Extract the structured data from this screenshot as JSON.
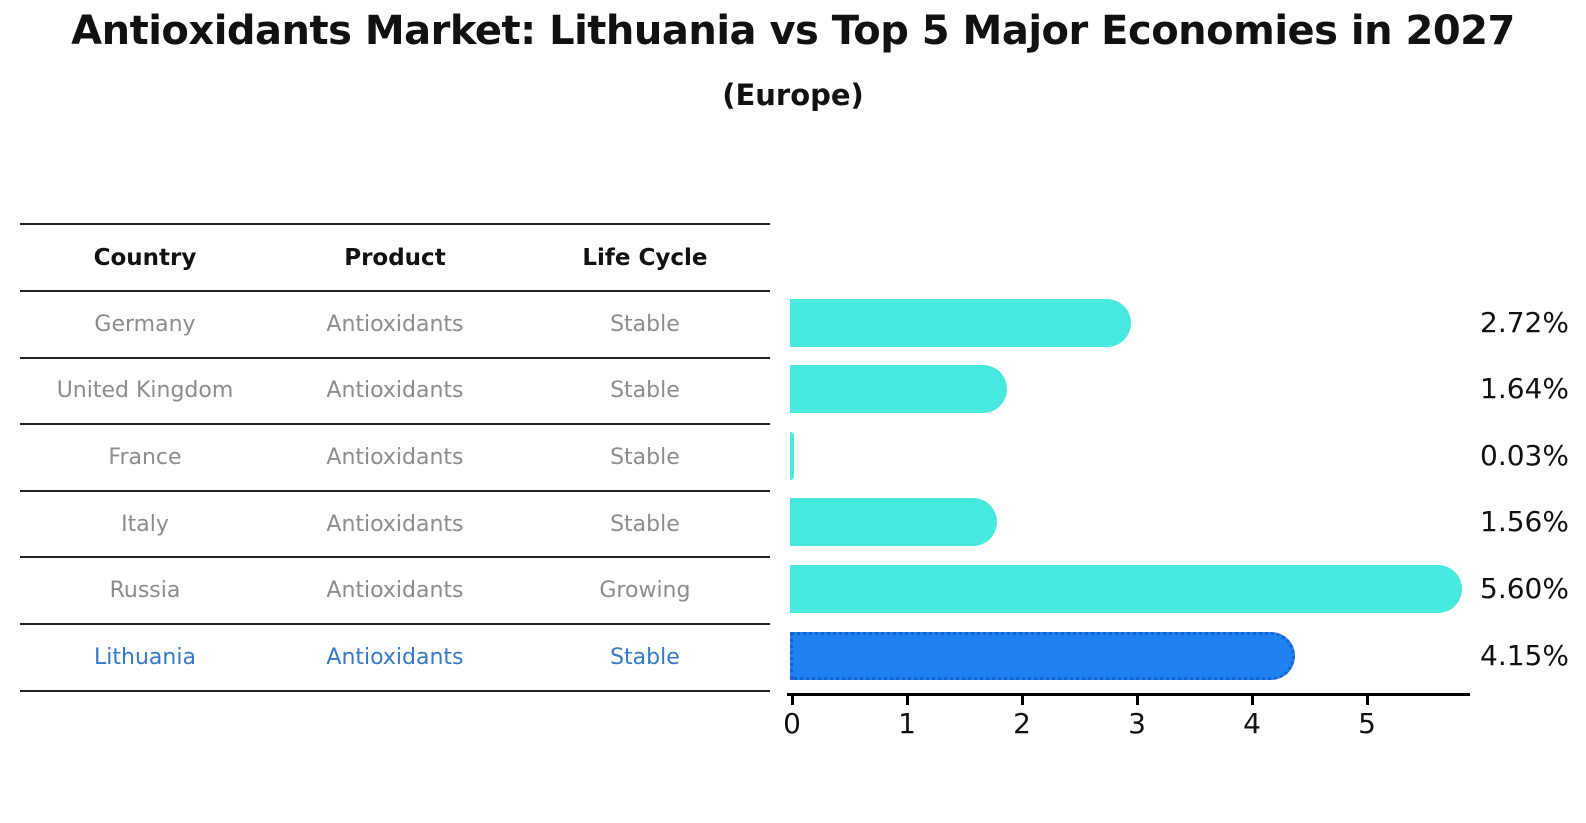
{
  "title": "Antioxidants Market: Lithuania vs Top 5 Major Economies in 2027",
  "subtitle": "(Europe)",
  "colors": {
    "bar_default": "#47e9df",
    "bar_highlight": "#1e82f0",
    "bar_highlight_border": "#1565d0",
    "row_text": "#8d8d8d",
    "highlight_text": "#3579c8",
    "axis": "#000000"
  },
  "table": {
    "headers": [
      "Country",
      "Product",
      "Life Cycle"
    ],
    "rows": [
      {
        "country": "Germany",
        "product": "Antioxidants",
        "life_cycle": "Stable",
        "highlight": false
      },
      {
        "country": "United Kingdom",
        "product": "Antioxidants",
        "life_cycle": "Stable",
        "highlight": false
      },
      {
        "country": "France",
        "product": "Antioxidants",
        "life_cycle": "Stable",
        "highlight": false
      },
      {
        "country": "Italy",
        "product": "Antioxidants",
        "life_cycle": "Stable",
        "highlight": false
      },
      {
        "country": "Russia",
        "product": "Antioxidants",
        "life_cycle": "Growing",
        "highlight": false
      },
      {
        "country": "Lithuania",
        "product": "Antioxidants",
        "life_cycle": "Stable",
        "highlight": true
      }
    ]
  },
  "chart_data": {
    "type": "bar",
    "orientation": "horizontal",
    "title": "Antioxidants Market: Lithuania vs Top 5 Major Economies in 2027",
    "subtitle": "(Europe)",
    "categories": [
      "Germany",
      "United Kingdom",
      "France",
      "Italy",
      "Russia",
      "Lithuania"
    ],
    "values": [
      2.72,
      1.64,
      0.03,
      1.56,
      5.6,
      4.15
    ],
    "value_labels": [
      "2.72%",
      "1.64%",
      "0.03%",
      "1.56%",
      "5.60%",
      "4.15%"
    ],
    "highlight_index": 5,
    "xticks": [
      "0",
      "1",
      "2",
      "3",
      "4",
      "5"
    ],
    "xlim": [
      0,
      5.9
    ],
    "grid": false,
    "legend": false
  }
}
